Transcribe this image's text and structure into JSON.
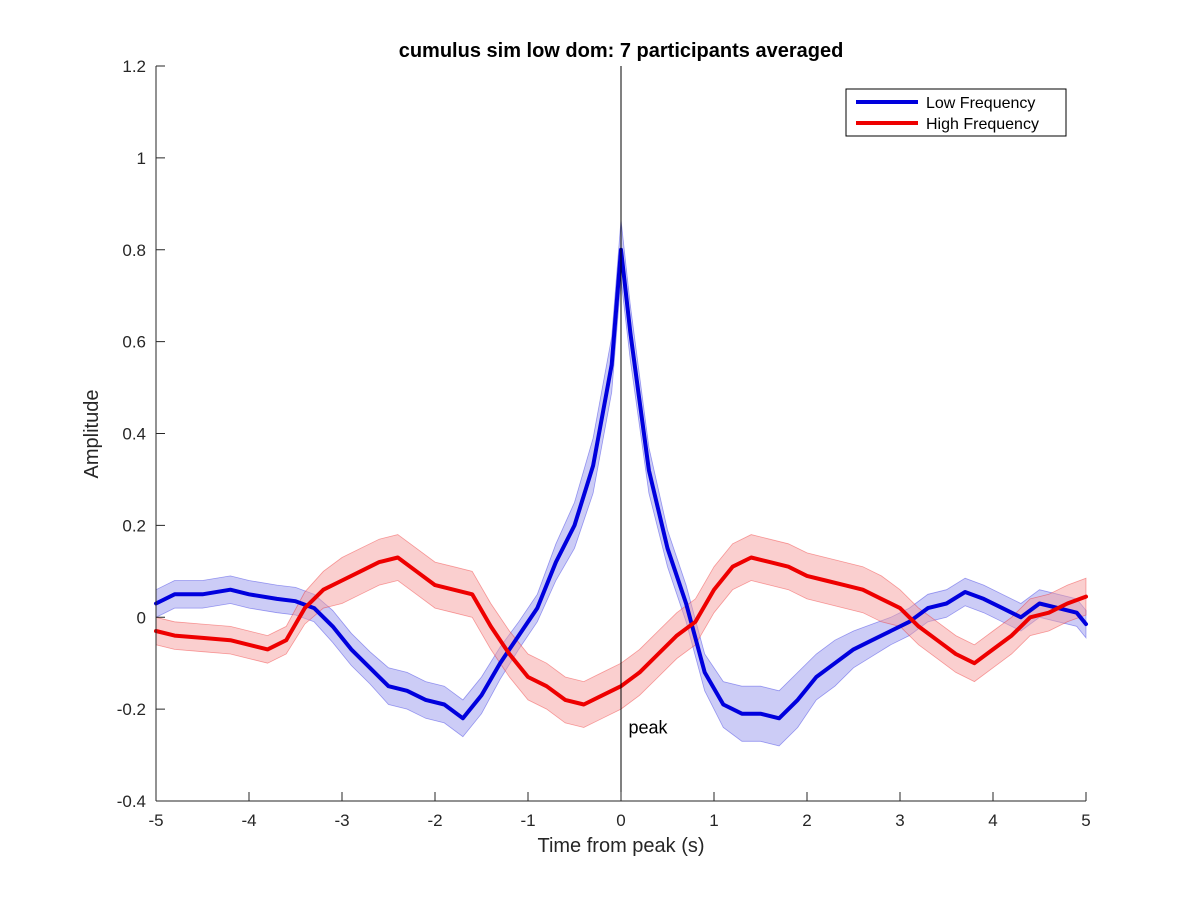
{
  "chart_data": {
    "type": "line",
    "title": "cumulus sim low dom: 7 participants averaged",
    "xlabel": "Time from peak (s)",
    "ylabel": "Amplitude",
    "xlim": [
      -5,
      5
    ],
    "ylim": [
      -0.4,
      1.2
    ],
    "xticks": [
      -5,
      -4,
      -3,
      -2,
      -1,
      0,
      1,
      2,
      3,
      4,
      5
    ],
    "yticks": [
      -0.4,
      -0.2,
      0,
      0.2,
      0.4,
      0.6,
      0.8,
      1,
      1.2
    ],
    "grid": false,
    "legend_position": "top-right",
    "annotation": {
      "text": "peak",
      "x": 0.08,
      "y": -0.24
    },
    "reference_line_x": 0,
    "series": [
      {
        "name": "Low Frequency",
        "color": "#0000dd",
        "band_color": "#9999ee",
        "x": [
          -5,
          -4.8,
          -4.5,
          -4.2,
          -4,
          -3.7,
          -3.5,
          -3.3,
          -3.1,
          -2.9,
          -2.7,
          -2.5,
          -2.3,
          -2.1,
          -1.9,
          -1.7,
          -1.5,
          -1.3,
          -1.1,
          -0.9,
          -0.7,
          -0.5,
          -0.3,
          -0.1,
          0,
          0.1,
          0.3,
          0.5,
          0.7,
          0.9,
          1.1,
          1.3,
          1.5,
          1.7,
          1.9,
          2.1,
          2.3,
          2.5,
          2.7,
          2.9,
          3.1,
          3.3,
          3.5,
          3.7,
          3.9,
          4.1,
          4.3,
          4.5,
          4.7,
          4.9,
          5
        ],
        "y": [
          0.03,
          0.05,
          0.05,
          0.06,
          0.05,
          0.04,
          0.035,
          0.02,
          -0.02,
          -0.07,
          -0.11,
          -0.15,
          -0.16,
          -0.18,
          -0.19,
          -0.22,
          -0.17,
          -0.1,
          -0.04,
          0.02,
          0.12,
          0.2,
          0.33,
          0.55,
          0.8,
          0.62,
          0.32,
          0.15,
          0.03,
          -0.12,
          -0.19,
          -0.21,
          -0.21,
          -0.22,
          -0.18,
          -0.13,
          -0.1,
          -0.07,
          -0.05,
          -0.03,
          -0.01,
          0.02,
          0.03,
          0.055,
          0.04,
          0.02,
          0.0,
          0.03,
          0.02,
          0.01,
          -0.015
        ],
        "band": [
          0.03,
          0.03,
          0.03,
          0.03,
          0.03,
          0.03,
          0.03,
          0.03,
          0.035,
          0.035,
          0.035,
          0.04,
          0.04,
          0.04,
          0.04,
          0.04,
          0.04,
          0.035,
          0.03,
          0.03,
          0.04,
          0.05,
          0.06,
          0.06,
          0.065,
          0.06,
          0.05,
          0.04,
          0.04,
          0.04,
          0.05,
          0.06,
          0.06,
          0.06,
          0.06,
          0.05,
          0.05,
          0.04,
          0.035,
          0.03,
          0.03,
          0.03,
          0.03,
          0.03,
          0.03,
          0.03,
          0.03,
          0.03,
          0.03,
          0.03,
          0.03
        ]
      },
      {
        "name": "High Frequency",
        "color": "#ee0000",
        "band_color": "#f5a0a0",
        "x": [
          -5,
          -4.8,
          -4.5,
          -4.2,
          -4,
          -3.8,
          -3.6,
          -3.4,
          -3.2,
          -3,
          -2.8,
          -2.6,
          -2.4,
          -2.2,
          -2,
          -1.8,
          -1.6,
          -1.4,
          -1.2,
          -1,
          -0.8,
          -0.6,
          -0.4,
          -0.2,
          0,
          0.2,
          0.4,
          0.6,
          0.8,
          1,
          1.2,
          1.4,
          1.6,
          1.8,
          2,
          2.2,
          2.4,
          2.6,
          2.8,
          3,
          3.2,
          3.4,
          3.6,
          3.8,
          4,
          4.2,
          4.4,
          4.6,
          4.8,
          5
        ],
        "y": [
          -0.03,
          -0.04,
          -0.045,
          -0.05,
          -0.06,
          -0.07,
          -0.05,
          0.02,
          0.06,
          0.08,
          0.1,
          0.12,
          0.13,
          0.1,
          0.07,
          0.06,
          0.05,
          -0.02,
          -0.08,
          -0.13,
          -0.15,
          -0.18,
          -0.19,
          -0.17,
          -0.15,
          -0.12,
          -0.08,
          -0.04,
          -0.01,
          0.06,
          0.11,
          0.13,
          0.12,
          0.11,
          0.09,
          0.08,
          0.07,
          0.06,
          0.04,
          0.02,
          -0.02,
          -0.05,
          -0.08,
          -0.1,
          -0.07,
          -0.04,
          0.0,
          0.01,
          0.03,
          0.045
        ],
        "band": [
          0.03,
          0.03,
          0.03,
          0.03,
          0.03,
          0.03,
          0.03,
          0.035,
          0.04,
          0.05,
          0.05,
          0.05,
          0.05,
          0.05,
          0.05,
          0.05,
          0.05,
          0.05,
          0.05,
          0.05,
          0.05,
          0.05,
          0.05,
          0.05,
          0.05,
          0.05,
          0.05,
          0.05,
          0.05,
          0.05,
          0.05,
          0.05,
          0.05,
          0.05,
          0.05,
          0.05,
          0.05,
          0.05,
          0.05,
          0.04,
          0.04,
          0.04,
          0.04,
          0.04,
          0.04,
          0.04,
          0.04,
          0.04,
          0.04,
          0.04
        ]
      }
    ]
  }
}
